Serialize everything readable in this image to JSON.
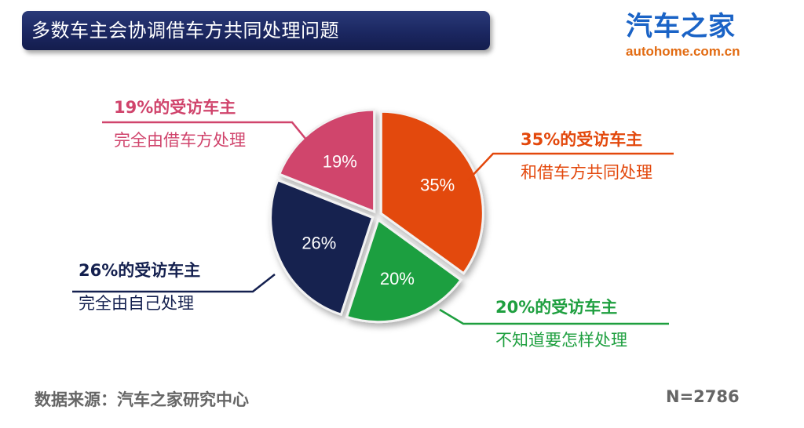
{
  "header": {
    "title": "多数车主会协调借车方共同处理问题"
  },
  "logo": {
    "name": "汽车之家",
    "url_text": "autohome.com.cn"
  },
  "chart_data": {
    "type": "pie",
    "title": "多数车主会协调借车方共同处理问题",
    "slices": [
      {
        "value": 35,
        "data_label": "35%",
        "color": "#e3480c",
        "label_line1": "35%的受访车主",
        "label_line2": "和借车方共同处理"
      },
      {
        "value": 20,
        "data_label": "20%",
        "color": "#1e9f3f",
        "label_line1": "20%的受访车主",
        "label_line2": "不知道要怎样处理"
      },
      {
        "value": 26,
        "data_label": "26%",
        "color": "#14204f",
        "label_line1": "26%的受访车主",
        "label_line2": "完全由自己处理"
      },
      {
        "value": 19,
        "data_label": "19%",
        "color": "#d0446c",
        "label_line1": "19%的受访车主",
        "label_line2": "完全由借车方处理"
      }
    ],
    "start_angle_deg": 0,
    "direction": "clockwise"
  },
  "footer": {
    "source": "数据来源：汽车之家研究中心",
    "n": "N=2786"
  }
}
